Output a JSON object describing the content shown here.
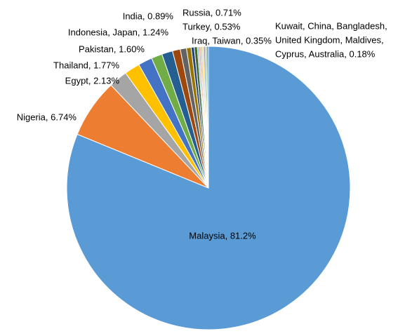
{
  "chart_data": {
    "type": "pie",
    "groups": [
      {
        "label": [
          "Malaysia, 81.2%"
        ],
        "values": [
          81.2
        ],
        "colors": [
          "#5b9bd5"
        ]
      },
      {
        "label": [
          "Nigeria, 6.74%"
        ],
        "values": [
          6.74
        ],
        "colors": [
          "#ed7d31"
        ]
      },
      {
        "label": [
          "Egypt, 2.13%"
        ],
        "values": [
          2.13
        ],
        "colors": [
          "#a5a5a5"
        ]
      },
      {
        "label": [
          "Thailand, 1.77%"
        ],
        "values": [
          1.77
        ],
        "colors": [
          "#ffc000"
        ]
      },
      {
        "label": [
          "Pakistan, 1.60%"
        ],
        "values": [
          1.6
        ],
        "colors": [
          "#4472c4"
        ]
      },
      {
        "label": [
          "Indonesia, Japan, 1.24%"
        ],
        "values": [
          1.24,
          1.24
        ],
        "colors": [
          "#70ad47",
          "#255e91"
        ]
      },
      {
        "label": [
          "India, 0.89%"
        ],
        "values": [
          0.89
        ],
        "colors": [
          "#9e480e"
        ]
      },
      {
        "label": [
          "Russia, 0.71%"
        ],
        "values": [
          0.71
        ],
        "colors": [
          "#636363"
        ]
      },
      {
        "label": [
          "Turkey, 0.53%"
        ],
        "values": [
          0.53
        ],
        "colors": [
          "#997300"
        ]
      },
      {
        "label": [
          "Iraq, Taiwan, 0.35%"
        ],
        "values": [
          0.35,
          0.35
        ],
        "colors": [
          "#264478",
          "#43682b"
        ]
      },
      {
        "label": [
          "Kuwait, China, Bangladesh,",
          "United Kingdom, Maldives,",
          "Cyprus, Australia, 0.18%"
        ],
        "values": [
          0.18,
          0.18,
          0.18,
          0.18,
          0.18,
          0.18,
          0.18
        ],
        "colors": [
          "#7cafdd",
          "#f1975a",
          "#b7b7b7",
          "#ffcd33",
          "#698ed0",
          "#8cc168",
          "#327dc2"
        ]
      }
    ]
  }
}
